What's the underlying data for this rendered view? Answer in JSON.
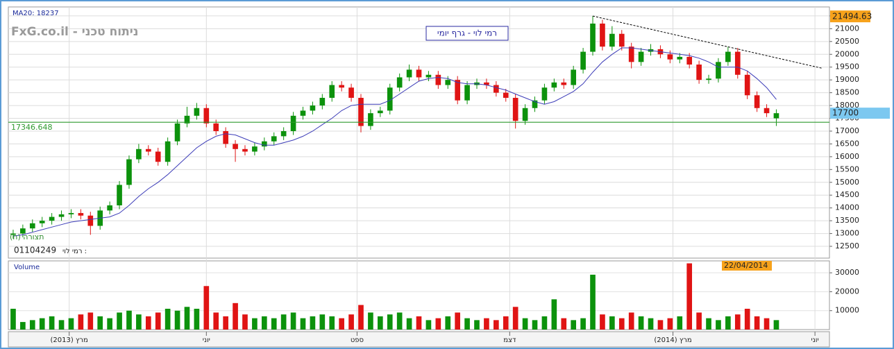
{
  "chart_data": {
    "type": "candlestick",
    "title": "רמי לוי - גרף יומי",
    "watermark": "FxG.co.il - ניתוח טכני",
    "indicator_label": "MA20: 18237",
    "pattern_label": "(ח) תצורה",
    "symbol_code": "01104249",
    "symbol_name": "רמי לוי :",
    "up_color": "#0c920c",
    "down_color": "#e01414",
    "grid": true,
    "xlim": [
      0,
      85
    ],
    "xticks": [
      {
        "value": 6.3,
        "label": "(2013) מרץ"
      },
      {
        "value": 20.5,
        "label": "יוני"
      },
      {
        "value": 36.1,
        "label": "ספט"
      },
      {
        "value": 51.9,
        "label": "דצמ"
      },
      {
        "value": 68.8,
        "label": "(2014) מרץ"
      },
      {
        "value": 83.5,
        "label": "יוני"
      }
    ],
    "ylim": [
      12040,
      21850
    ],
    "yticks": [
      12500,
      13000,
      13500,
      14000,
      14500,
      15000,
      15500,
      16000,
      16500,
      17000,
      17500,
      18000,
      18500,
      19000,
      19500,
      20000,
      20500,
      21000,
      21500
    ],
    "open": [
      12950,
      13000,
      13200,
      13400,
      13500,
      13650,
      13750,
      13800,
      13700,
      13300,
      13900,
      14100,
      14900,
      15900,
      16300,
      16200,
      15800,
      16600,
      17300,
      17600,
      17900,
      17300,
      17000,
      16500,
      16300,
      16200,
      16400,
      16600,
      16800,
      17000,
      17600,
      17800,
      18000,
      18300,
      18800,
      18700,
      18300,
      17200,
      17700,
      17800,
      18700,
      19100,
      19400,
      19100,
      19200,
      18800,
      19000,
      18200,
      18800,
      18900,
      18800,
      18500,
      18300,
      17400,
      17900,
      18200,
      18700,
      18900,
      18800,
      19400,
      20100,
      21200,
      20300,
      20800,
      20300,
      19700,
      20100,
      20200,
      20000,
      19800,
      19900,
      19600,
      19000,
      19050,
      19700,
      20100,
      19200,
      18400,
      17900,
      17500
    ],
    "high": [
      13150,
      13350,
      13550,
      13650,
      13800,
      13900,
      13950,
      13950,
      13850,
      14050,
      14250,
      15050,
      16050,
      16500,
      16450,
      16350,
      16750,
      17450,
      17950,
      18100,
      18050,
      17450,
      17150,
      16650,
      16450,
      16550,
      16750,
      16950,
      17150,
      17750,
      17950,
      18150,
      18450,
      18950,
      18950,
      18850,
      18450,
      17850,
      17950,
      18850,
      19250,
      19600,
      19550,
      19350,
      19350,
      19150,
      19150,
      18950,
      19050,
      19050,
      18950,
      18650,
      18450,
      18050,
      18350,
      18850,
      19050,
      19050,
      19550,
      20250,
      21494.63,
      21350,
      21100,
      20950,
      20450,
      20250,
      20400,
      20350,
      20150,
      20050,
      20050,
      19750,
      19200,
      19850,
      20300,
      20250,
      19350,
      18550,
      18050,
      17850
    ],
    "low": [
      12800,
      12850,
      13050,
      13250,
      13350,
      13500,
      13600,
      13550,
      12950,
      13150,
      13750,
      13950,
      14750,
      15750,
      16050,
      15650,
      15650,
      16450,
      17150,
      17450,
      17150,
      16850,
      16350,
      15800,
      16050,
      16050,
      16250,
      16450,
      16650,
      16850,
      17450,
      17650,
      17850,
      18150,
      18550,
      18150,
      16950,
      17050,
      17550,
      17650,
      18550,
      18950,
      18950,
      18950,
      18650,
      18650,
      18050,
      18050,
      18650,
      18650,
      18350,
      18150,
      17100,
      17250,
      17750,
      18050,
      18550,
      18650,
      18650,
      19250,
      19950,
      20150,
      20150,
      20150,
      19450,
      19550,
      19950,
      19850,
      19650,
      19650,
      19450,
      18850,
      18850,
      18900,
      19550,
      19050,
      18250,
      17750,
      17550,
      17200
    ],
    "close": [
      13000,
      13200,
      13400,
      13500,
      13650,
      13750,
      13800,
      13700,
      13300,
      13900,
      14100,
      14900,
      15900,
      16300,
      16200,
      15800,
      16600,
      17300,
      17600,
      17900,
      17300,
      17000,
      16500,
      16300,
      16200,
      16400,
      16600,
      16800,
      17000,
      17600,
      17800,
      18000,
      18300,
      18800,
      18700,
      18300,
      17200,
      17700,
      17800,
      18700,
      19100,
      19400,
      19100,
      19200,
      18800,
      19000,
      18200,
      18800,
      18900,
      18800,
      18500,
      18300,
      17400,
      17900,
      18200,
      18700,
      18900,
      18800,
      19400,
      20100,
      21200,
      20300,
      20800,
      20300,
      19700,
      20100,
      20200,
      20000,
      19800,
      19900,
      19600,
      19000,
      19050,
      19700,
      20100,
      19200,
      18400,
      17900,
      17700,
      17700
    ],
    "ma20": {
      "color": "#3c3cb8",
      "values": [
        12900,
        12950,
        13050,
        13150,
        13250,
        13350,
        13450,
        13500,
        13550,
        13600,
        13650,
        13800,
        14100,
        14450,
        14750,
        15000,
        15300,
        15650,
        16000,
        16350,
        16600,
        16800,
        16900,
        16850,
        16700,
        16550,
        16450,
        16450,
        16550,
        16650,
        16800,
        17000,
        17250,
        17500,
        17800,
        18000,
        18050,
        18050,
        18050,
        18200,
        18450,
        18700,
        18950,
        19050,
        19100,
        19050,
        18900,
        18850,
        18850,
        18800,
        18700,
        18600,
        18450,
        18300,
        18150,
        18050,
        18150,
        18350,
        18550,
        18850,
        19300,
        19700,
        20000,
        20250,
        20250,
        20200,
        20150,
        20100,
        20050,
        20000,
        19950,
        19850,
        19700,
        19500,
        19500,
        19500,
        19350,
        19050,
        18700,
        18237
      ]
    },
    "level_line": {
      "value": 17346.648,
      "color": "#2e9a2e"
    },
    "trendline": {
      "x": [
        60.5,
        84.3
      ],
      "y": [
        21494.63,
        19450
      ]
    },
    "high_tag": 21494.63,
    "last_price": 17700,
    "date_tag": "22/04/2014",
    "volume": {
      "title": "Volume",
      "ylim": [
        0,
        36300
      ],
      "yticks": [
        10000,
        20000,
        30000
      ],
      "values": [
        11000,
        4000,
        5000,
        6000,
        7000,
        5000,
        6000,
        8000,
        9000,
        7000,
        6000,
        9000,
        10000,
        8000,
        7000,
        9000,
        11000,
        10000,
        12000,
        11000,
        23000,
        9000,
        7000,
        14000,
        8000,
        6000,
        7000,
        6000,
        8000,
        9000,
        6000,
        7000,
        8000,
        7000,
        6000,
        8000,
        13000,
        9000,
        7000,
        8000,
        9000,
        6000,
        7000,
        5000,
        6000,
        7000,
        9000,
        6000,
        5000,
        6000,
        5000,
        7000,
        12000,
        6000,
        5000,
        7000,
        16000,
        6000,
        5000,
        6000,
        29000,
        8000,
        7000,
        6000,
        9000,
        7000,
        6000,
        5000,
        6000,
        7000,
        35000,
        9000,
        6000,
        5000,
        7000,
        8000,
        11000,
        7000,
        6000,
        5000
      ]
    }
  }
}
